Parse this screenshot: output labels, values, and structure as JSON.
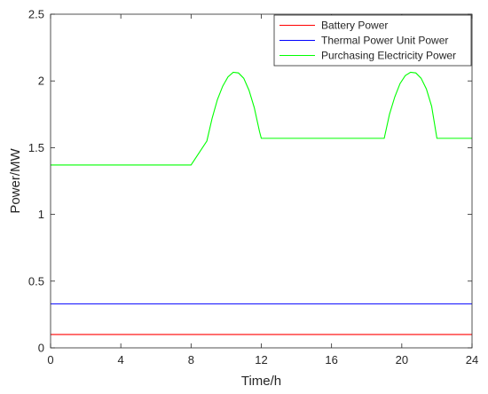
{
  "chart_data": {
    "type": "line",
    "title": "",
    "xlabel": "Time/h",
    "ylabel": "Power/MW",
    "xlim": [
      0,
      24
    ],
    "ylim": [
      0,
      2.5
    ],
    "xticks": [
      0,
      4,
      8,
      12,
      16,
      20,
      24
    ],
    "xtick_labels": [
      "0",
      "4",
      "8",
      "12",
      "16",
      "20",
      "24"
    ],
    "yticks": [
      0,
      0.5,
      1,
      1.5,
      2,
      2.5
    ],
    "ytick_labels": [
      "0",
      "0.5",
      "1",
      "1.5",
      "2",
      "2.5"
    ],
    "grid": false,
    "legend_position": "top-right",
    "series": [
      {
        "name": "Battery Power",
        "color": "#ff0000",
        "x": [
          0,
          24
        ],
        "y": [
          0.1,
          0.1
        ]
      },
      {
        "name": "Thermal Power Unit Power",
        "color": "#0000ff",
        "x": [
          0,
          24
        ],
        "y": [
          0.33,
          0.33
        ]
      },
      {
        "name": "Purchasing Electricity Power",
        "color": "#00ff00",
        "x": [
          0,
          8,
          8.9,
          9.2,
          9.5,
          9.8,
          10.1,
          10.4,
          10.7,
          11.0,
          11.3,
          11.6,
          11.9,
          12.0,
          19.0,
          19.3,
          19.6,
          19.9,
          20.2,
          20.5,
          20.8,
          21.1,
          21.4,
          21.7,
          22.0,
          24.0
        ],
        "y": [
          1.37,
          1.37,
          1.55,
          1.72,
          1.86,
          1.96,
          2.03,
          2.065,
          2.06,
          2.02,
          1.93,
          1.8,
          1.62,
          1.57,
          1.57,
          1.75,
          1.88,
          1.98,
          2.04,
          2.065,
          2.06,
          2.02,
          1.94,
          1.81,
          1.57,
          1.57
        ]
      }
    ]
  }
}
